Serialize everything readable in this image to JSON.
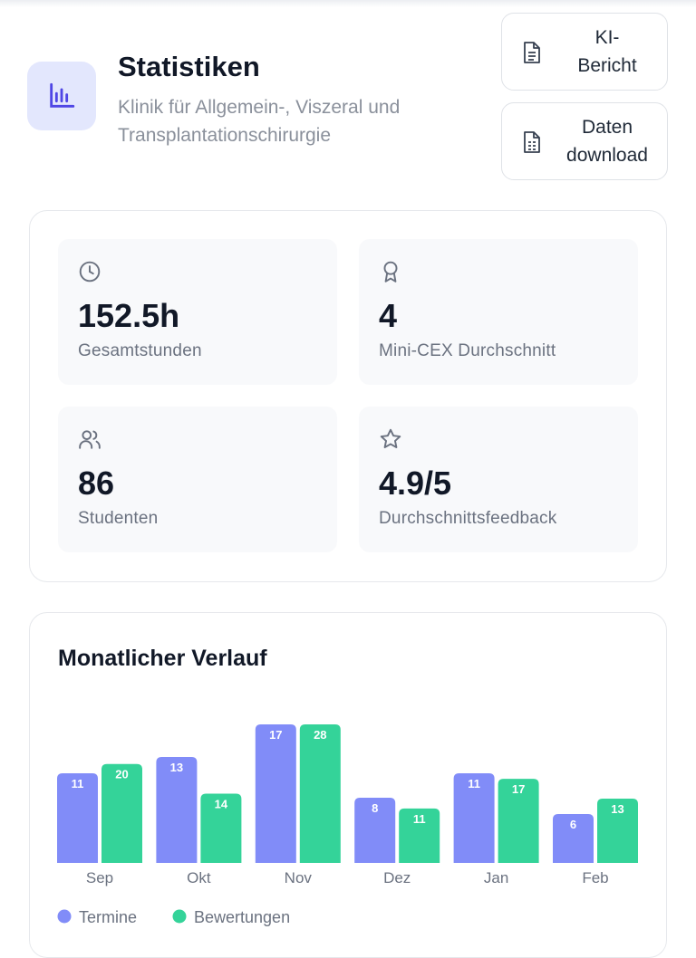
{
  "header": {
    "title": "Statistiken",
    "subtitle": "Klinik für Allgemein-, Viszeral und Transplantationschirurgie"
  },
  "buttons": [
    {
      "lines": [
        "KI-",
        "Bericht"
      ]
    },
    {
      "lines": [
        "Daten",
        "download"
      ]
    }
  ],
  "stats": [
    {
      "value": "152.5h",
      "label": "Gesamtstunden"
    },
    {
      "value": "4",
      "label": "Mini-CEX Durchschnitt"
    },
    {
      "value": "86",
      "label": "Studenten"
    },
    {
      "value": "4.9/5",
      "label": "Durchschnittsfeedback"
    }
  ],
  "chart_data": {
    "type": "bar",
    "title": "Monatlicher Verlauf",
    "categories": [
      "Sep",
      "Okt",
      "Nov",
      "Dez",
      "Jan",
      "Feb"
    ],
    "series": [
      {
        "name": "Termine",
        "color": "#818cf8",
        "values": [
          11,
          13,
          17,
          8,
          11,
          6
        ]
      },
      {
        "name": "Bewertungen",
        "color": "#34d399",
        "values": [
          20,
          14,
          28,
          11,
          17,
          13
        ]
      }
    ]
  }
}
